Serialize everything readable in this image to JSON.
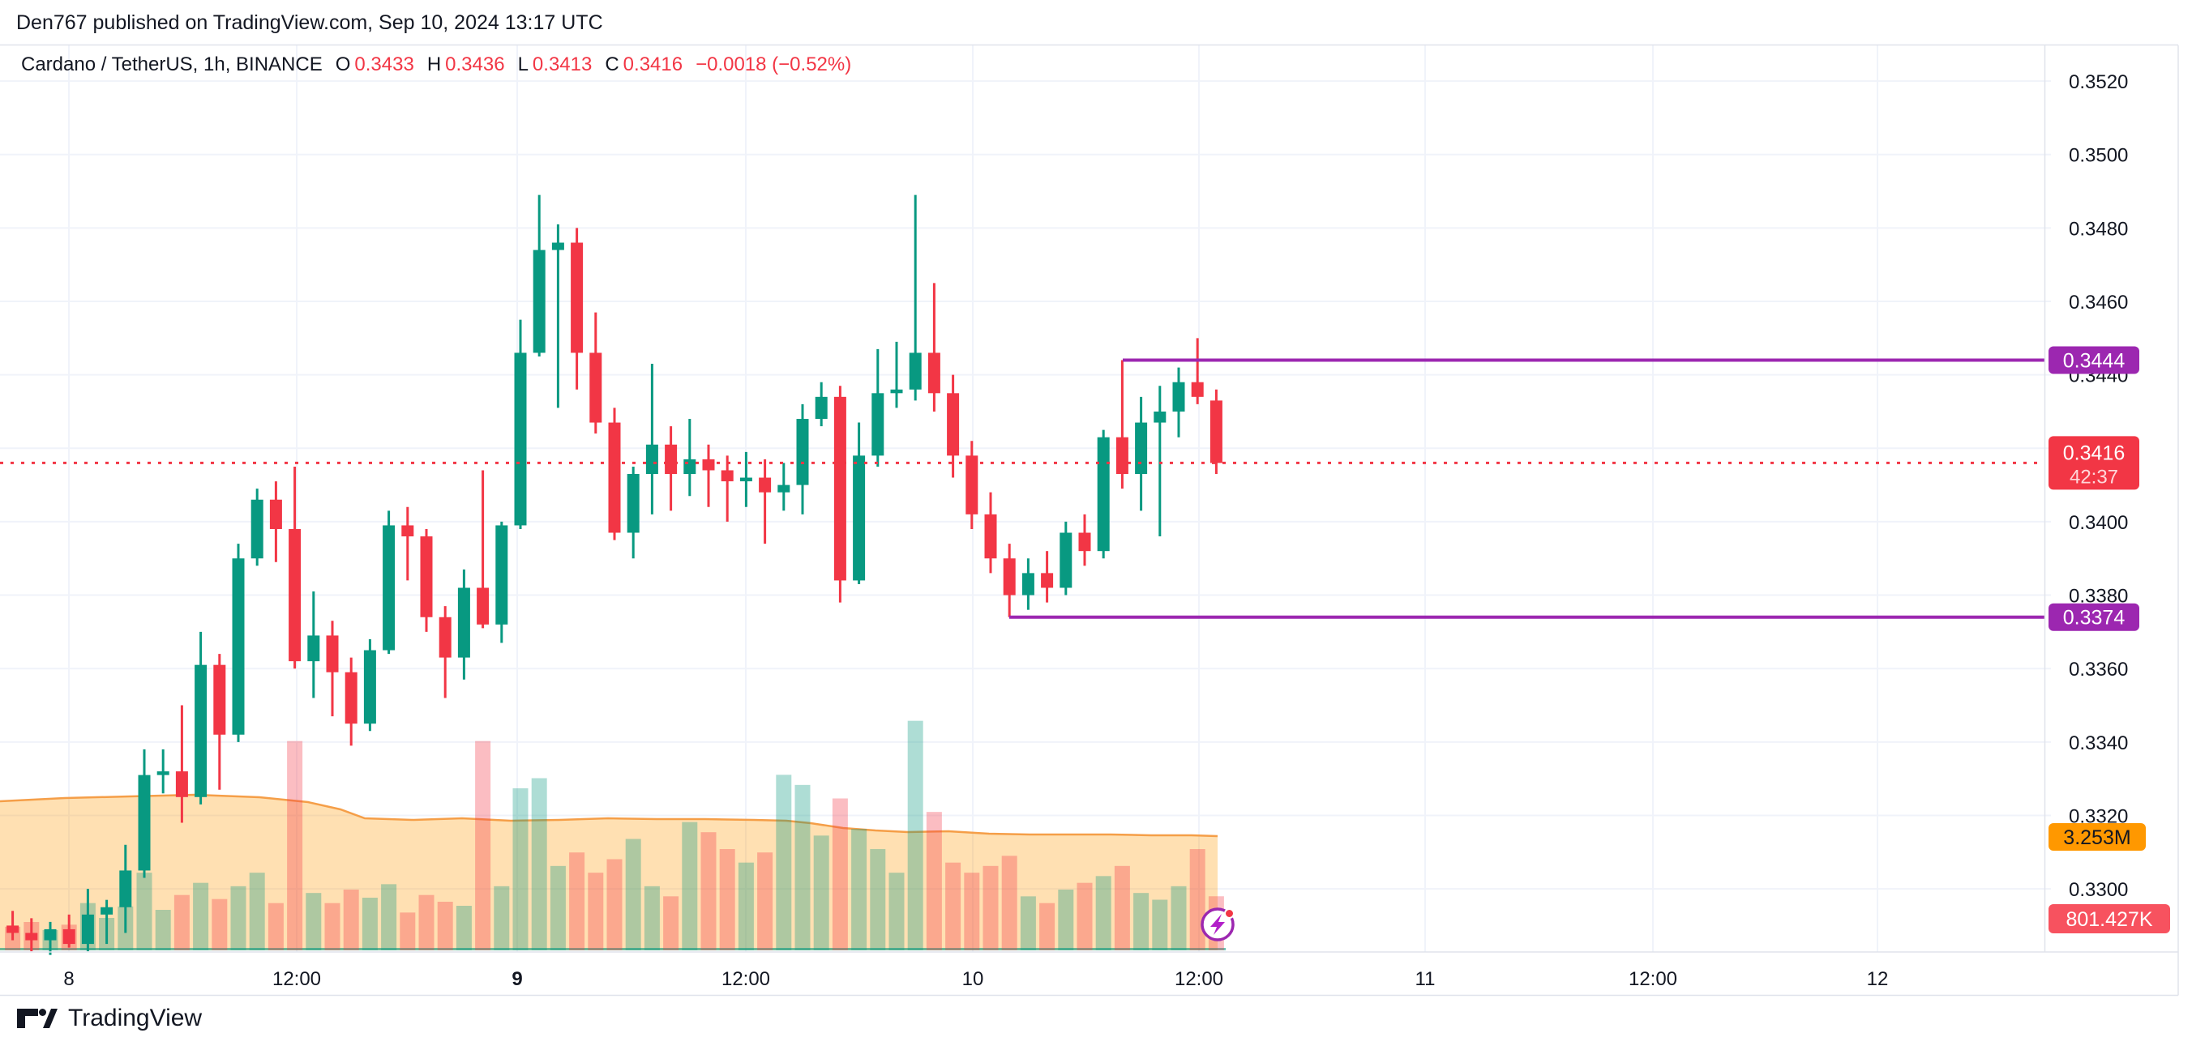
{
  "header": {
    "text": "Den767 published on TradingView.com, Sep 10, 2024 13:17 UTC"
  },
  "legend": {
    "title": "Cardano / TetherUS, 1h, BINANCE",
    "o_label": "O",
    "o_value": "0.3433",
    "h_label": "H",
    "h_value": "0.3436",
    "l_label": "L",
    "l_value": "0.3413",
    "c_label": "C",
    "c_value": "0.3416",
    "change": "−0.0018 (−0.52%)"
  },
  "footer": {
    "brand": "TradingView"
  },
  "colors": {
    "up": "#089981",
    "down": "#F23645",
    "purple": "#9C27B0",
    "grid": "#F0F3FA",
    "border": "#E0E3EB",
    "axis_text": "#131722",
    "area_fill": "rgba(255,152,0,0.30)",
    "area_line": "rgba(244,154,64,0.95)",
    "orange_label_bg": "#FF9800",
    "vol_label_bg": "#F7525F",
    "last_label_bg": "#F23645",
    "countdown_text": "#FFD6D9"
  },
  "chart_data": {
    "type": "candlestick",
    "title": "Cardano / TetherUS, 1h, BINANCE",
    "y_ticks": [
      "0.3520",
      "0.3500",
      "0.3480",
      "0.3460",
      "0.3440",
      "0.3420",
      "0.3400",
      "0.3380",
      "0.3360",
      "0.3340",
      "0.3320",
      "0.3300"
    ],
    "y_range": [
      0.33,
      0.352
    ],
    "x_ticks": [
      {
        "label": "8",
        "x": 85,
        "bold": false
      },
      {
        "label": "12:00",
        "x": 366,
        "bold": false
      },
      {
        "label": "9",
        "x": 638,
        "bold": true
      },
      {
        "label": "12:00",
        "x": 920,
        "bold": false
      },
      {
        "label": "10",
        "x": 1200,
        "bold": false
      },
      {
        "label": "12:00",
        "x": 1479,
        "bold": false
      },
      {
        "label": "11",
        "x": 1758,
        "bold": false
      },
      {
        "label": "12:00",
        "x": 2039,
        "bold": false
      },
      {
        "label": "12",
        "x": 2316,
        "bold": false
      }
    ],
    "candles": [
      [
        0.329,
        0.3294,
        0.3286,
        0.3288
      ],
      [
        0.3288,
        0.3292,
        0.3283,
        0.3286
      ],
      [
        0.3286,
        0.3291,
        0.3282,
        0.3289
      ],
      [
        0.3289,
        0.3293,
        0.3284,
        0.3285
      ],
      [
        0.3285,
        0.33,
        0.3283,
        0.3293
      ],
      [
        0.3293,
        0.3297,
        0.3285,
        0.3295
      ],
      [
        0.3295,
        0.3312,
        0.3288,
        0.3305
      ],
      [
        0.3305,
        0.3338,
        0.3303,
        0.3331
      ],
      [
        0.3331,
        0.3338,
        0.3326,
        0.3332
      ],
      [
        0.3332,
        0.335,
        0.3318,
        0.3325
      ],
      [
        0.3325,
        0.337,
        0.3323,
        0.3361
      ],
      [
        0.3361,
        0.3364,
        0.3327,
        0.3342
      ],
      [
        0.3342,
        0.3394,
        0.334,
        0.339
      ],
      [
        0.339,
        0.3409,
        0.3388,
        0.3406
      ],
      [
        0.3406,
        0.3411,
        0.3389,
        0.3398
      ],
      [
        0.3398,
        0.3415,
        0.336,
        0.3362
      ],
      [
        0.3362,
        0.3381,
        0.3352,
        0.3369
      ],
      [
        0.3369,
        0.3373,
        0.3347,
        0.3359
      ],
      [
        0.3359,
        0.3363,
        0.3339,
        0.3345
      ],
      [
        0.3345,
        0.3368,
        0.3343,
        0.3365
      ],
      [
        0.3365,
        0.3403,
        0.3364,
        0.3399
      ],
      [
        0.3399,
        0.3404,
        0.3384,
        0.3396
      ],
      [
        0.3396,
        0.3398,
        0.337,
        0.3374
      ],
      [
        0.3374,
        0.3377,
        0.3352,
        0.3363
      ],
      [
        0.3363,
        0.3387,
        0.3357,
        0.3382
      ],
      [
        0.3382,
        0.3414,
        0.3371,
        0.3372
      ],
      [
        0.3372,
        0.34,
        0.3367,
        0.3399
      ],
      [
        0.3399,
        0.3455,
        0.3398,
        0.3446
      ],
      [
        0.3446,
        0.3489,
        0.3445,
        0.3474
      ],
      [
        0.3474,
        0.3481,
        0.3431,
        0.3476
      ],
      [
        0.3476,
        0.348,
        0.3436,
        0.3446
      ],
      [
        0.3446,
        0.3457,
        0.3424,
        0.3427
      ],
      [
        0.3427,
        0.3431,
        0.3395,
        0.3397
      ],
      [
        0.3397,
        0.3415,
        0.339,
        0.3413
      ],
      [
        0.3413,
        0.3443,
        0.3402,
        0.3421
      ],
      [
        0.3421,
        0.3426,
        0.3403,
        0.3413
      ],
      [
        0.3413,
        0.3428,
        0.3407,
        0.3417
      ],
      [
        0.3417,
        0.3421,
        0.3404,
        0.3414
      ],
      [
        0.3414,
        0.3418,
        0.34,
        0.3411
      ],
      [
        0.3411,
        0.3419,
        0.3404,
        0.3412
      ],
      [
        0.3412,
        0.3417,
        0.3394,
        0.3408
      ],
      [
        0.3408,
        0.3416,
        0.3403,
        0.341
      ],
      [
        0.341,
        0.3432,
        0.3402,
        0.3428
      ],
      [
        0.3428,
        0.3438,
        0.3426,
        0.3434
      ],
      [
        0.3434,
        0.3437,
        0.3378,
        0.3384
      ],
      [
        0.3384,
        0.3427,
        0.3383,
        0.3418
      ],
      [
        0.3418,
        0.3447,
        0.3415,
        0.3435
      ],
      [
        0.3435,
        0.3449,
        0.3431,
        0.3436
      ],
      [
        0.3436,
        0.3489,
        0.3433,
        0.3446
      ],
      [
        0.3446,
        0.3465,
        0.343,
        0.3435
      ],
      [
        0.3435,
        0.344,
        0.3412,
        0.3418
      ],
      [
        0.3418,
        0.3422,
        0.3398,
        0.3402
      ],
      [
        0.3402,
        0.3408,
        0.3386,
        0.339
      ],
      [
        0.339,
        0.3394,
        0.3374,
        0.338
      ],
      [
        0.338,
        0.339,
        0.3376,
        0.3386
      ],
      [
        0.3386,
        0.3392,
        0.3378,
        0.3382
      ],
      [
        0.3382,
        0.34,
        0.338,
        0.3397
      ],
      [
        0.3397,
        0.3402,
        0.3388,
        0.3392
      ],
      [
        0.3392,
        0.3425,
        0.339,
        0.3423
      ],
      [
        0.3423,
        0.3444,
        0.3409,
        0.3413
      ],
      [
        0.3413,
        0.3434,
        0.3403,
        0.3427
      ],
      [
        0.3427,
        0.3437,
        0.3396,
        0.343
      ],
      [
        0.343,
        0.3442,
        0.3423,
        0.3438
      ],
      [
        0.3438,
        0.345,
        0.3432,
        0.3434
      ],
      [
        0.3433,
        0.3436,
        0.3413,
        0.3416
      ]
    ],
    "volumes_k": [
      350,
      420,
      300,
      380,
      700,
      480,
      650,
      1150,
      600,
      820,
      1000,
      760,
      950,
      1150,
      700,
      3100,
      850,
      700,
      900,
      780,
      980,
      560,
      820,
      720,
      660,
      3100,
      950,
      2400,
      2550,
      1250,
      1450,
      1150,
      1350,
      1650,
      950,
      800,
      1900,
      1750,
      1500,
      1300,
      1450,
      2600,
      2450,
      1700,
      2250,
      1800,
      1500,
      1150,
      3400,
      2050,
      1300,
      1150,
      1250,
      1400,
      800,
      700,
      900,
      1000,
      1100,
      1250,
      850,
      750,
      950,
      1500,
      801
    ],
    "volume_last_label": "801.427K",
    "volume_area": {
      "label": "3.253M",
      "points": [
        [
          0,
          989
        ],
        [
          80,
          985
        ],
        [
          160,
          983
        ],
        [
          240,
          981
        ],
        [
          320,
          984
        ],
        [
          380,
          990
        ],
        [
          420,
          999
        ],
        [
          450,
          1010
        ],
        [
          510,
          1012
        ],
        [
          570,
          1010
        ],
        [
          630,
          1013
        ],
        [
          690,
          1012
        ],
        [
          750,
          1010
        ],
        [
          810,
          1011
        ],
        [
          870,
          1011
        ],
        [
          930,
          1012
        ],
        [
          970,
          1013
        ],
        [
          1000,
          1016
        ],
        [
          1040,
          1022
        ],
        [
          1080,
          1025
        ],
        [
          1120,
          1027
        ],
        [
          1170,
          1026
        ],
        [
          1220,
          1029
        ],
        [
          1270,
          1030
        ],
        [
          1320,
          1030
        ],
        [
          1370,
          1030
        ],
        [
          1420,
          1031
        ],
        [
          1470,
          1031
        ],
        [
          1502,
          1032
        ]
      ]
    },
    "price_lines": [
      {
        "price": 0.3444,
        "label": "0.3444",
        "x_start": 1385
      },
      {
        "price": 0.3374,
        "label": "0.3374",
        "x_start": 1245
      }
    ],
    "last_price": {
      "price": 0.3416,
      "label": "0.3416",
      "countdown": "42:37"
    },
    "legend_note": "grid on, right price scale, bottom time scale"
  }
}
